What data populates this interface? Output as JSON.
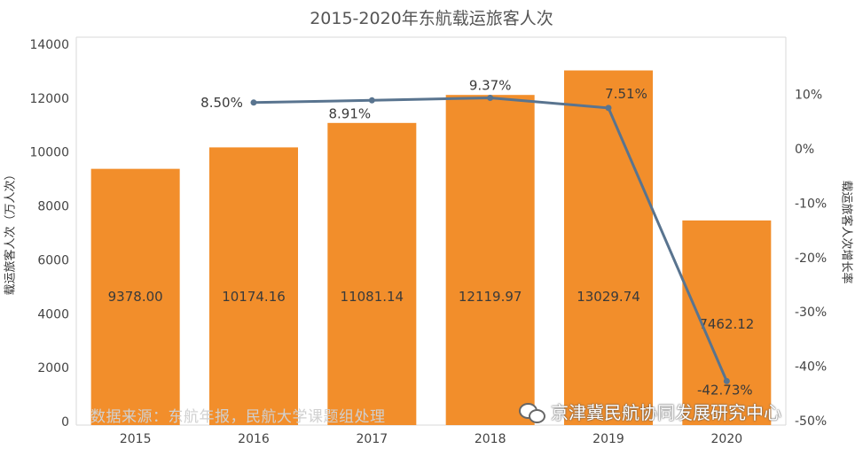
{
  "title": "2015-2020年东航载运旅客人次",
  "source_note": "数据来源：东航年报，民航大学课题组处理",
  "watermark": "京津冀民航协同发展研究中心",
  "watermark_icon": "wechat-icon",
  "colors": {
    "bar": "#F28E2B",
    "line": "#59748F",
    "grid": "#E6E6E6",
    "axis_text": "#444444"
  },
  "chart_data": {
    "type": "bar",
    "title": "2015-2020年东航载运旅客人次",
    "categories": [
      "2015",
      "2016",
      "2017",
      "2018",
      "2019",
      "2020"
    ],
    "ylabel": "载运旅客人次（万人次）",
    "ylim": [
      0,
      14000
    ],
    "yticks": [
      0,
      2000,
      4000,
      6000,
      8000,
      10000,
      12000,
      14000
    ],
    "y2label": "载运旅客人次增长率",
    "y2lim": [
      -50,
      20
    ],
    "y2ticks": [
      -50,
      -40,
      -30,
      -20,
      -10,
      0,
      10
    ],
    "y2tick_labels": [
      "-50%",
      "-40%",
      "-30%",
      "-20%",
      "-10%",
      "0%",
      "10%"
    ],
    "grid": false,
    "series": [
      {
        "kind": "bar",
        "axis": "left",
        "values": [
          9378.0,
          10174.16,
          11081.14,
          12119.97,
          13029.74,
          7462.12
        ],
        "labels": [
          "9378.00",
          "10174.16",
          "11081.14",
          "12119.97",
          "13029.74",
          "7462.12"
        ]
      },
      {
        "kind": "line",
        "axis": "right",
        "x": [
          "2016",
          "2017",
          "2018",
          "2019",
          "2020"
        ],
        "values": [
          8.5,
          8.91,
          9.37,
          7.51,
          -42.73
        ],
        "labels": [
          "8.50%",
          "8.91%",
          "9.37%",
          "7.51%",
          "-42.73%"
        ]
      }
    ]
  }
}
